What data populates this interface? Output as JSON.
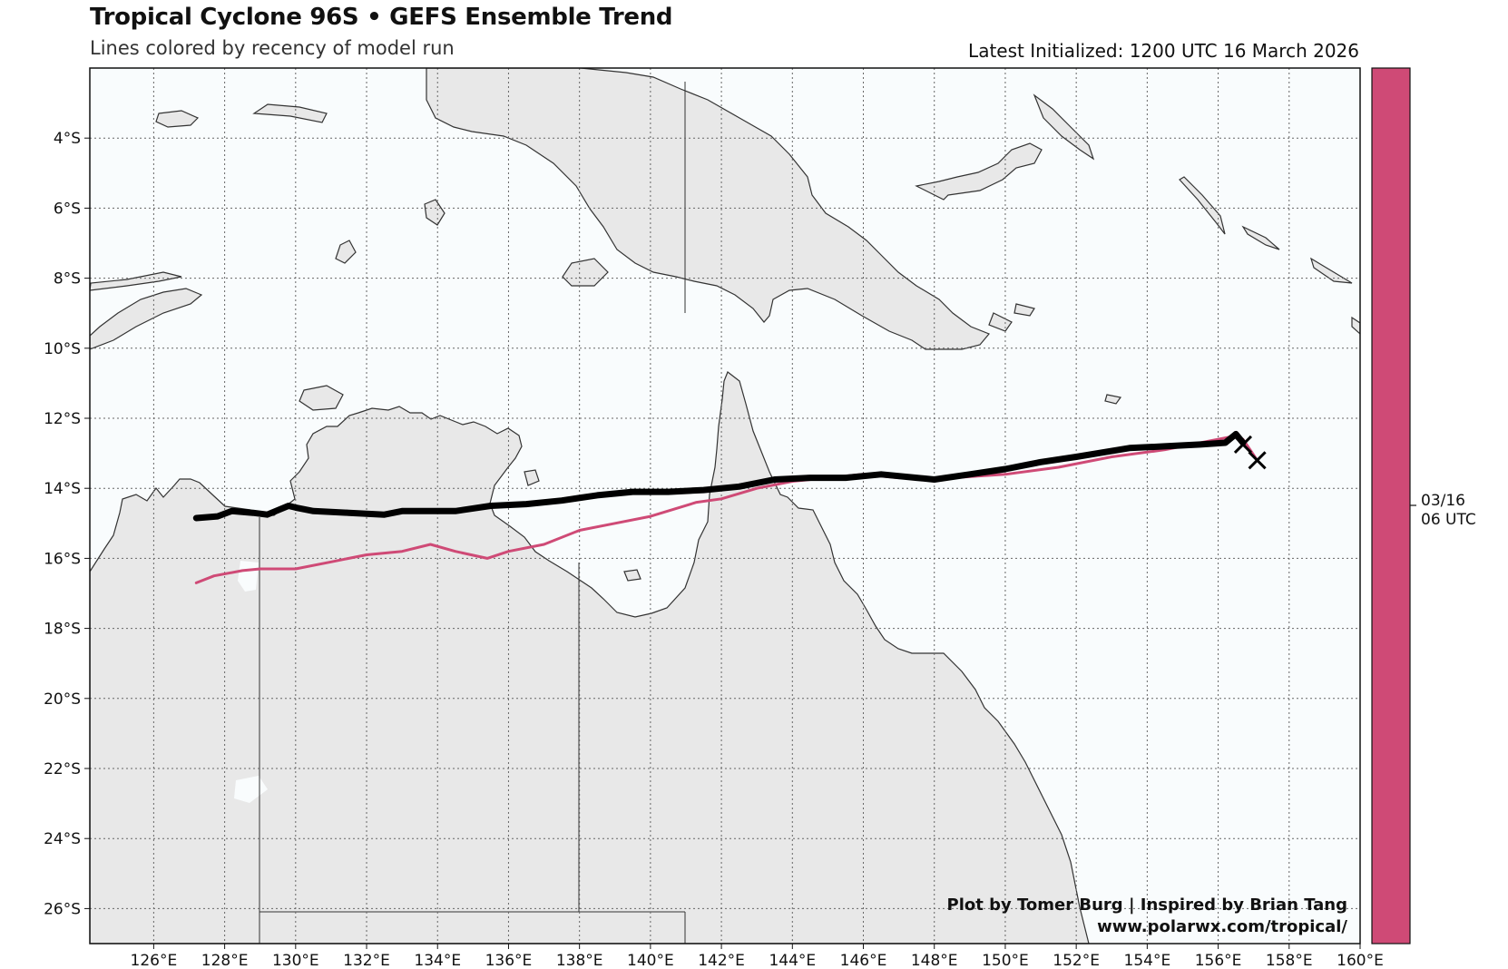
{
  "header": {
    "title": "Tropical Cyclone 96S • GEFS Ensemble Trend",
    "subtitle": "Lines colored by recency of model run",
    "latest_init": "Latest Initialized: 1200 UTC 16 March 2026"
  },
  "map": {
    "lon_range": [
      124.2,
      160
    ],
    "lat_range": [
      -27,
      -2
    ],
    "lon_ticks": [
      "126°E",
      "128°E",
      "130°E",
      "132°E",
      "134°E",
      "136°E",
      "138°E",
      "140°E",
      "142°E",
      "144°E",
      "146°E",
      "148°E",
      "150°E",
      "152°E",
      "154°E",
      "156°E",
      "158°E",
      "160°E"
    ],
    "lat_ticks": [
      "4°S",
      "6°S",
      "8°S",
      "10°S",
      "12°S",
      "14°S",
      "16°S",
      "18°S",
      "20°S",
      "22°S",
      "24°S",
      "26°S"
    ],
    "grid": true,
    "colors": {
      "land": "#e8e8e8",
      "ocean": "#f9fcfd",
      "coast": "#333333",
      "grid": "#666666"
    }
  },
  "colorbar": {
    "color": "#cf4a76",
    "label_date": "03/16",
    "label_time": "06 UTC"
  },
  "tracks": [
    {
      "run": "03/16 06 UTC",
      "color": "#cf4a76",
      "points": [
        [
          157.1,
          -13.2
        ],
        [
          156.9,
          -12.9
        ],
        [
          156.7,
          -12.6
        ],
        [
          156.5,
          -12.5
        ],
        [
          155.5,
          -12.7
        ],
        [
          154.5,
          -12.9
        ],
        [
          153,
          -13.1
        ],
        [
          151.5,
          -13.4
        ],
        [
          150,
          -13.6
        ],
        [
          148.5,
          -13.7
        ],
        [
          147,
          -13.7
        ],
        [
          146,
          -13.6
        ],
        [
          145,
          -13.7
        ],
        [
          144,
          -13.8
        ],
        [
          143,
          -14
        ],
        [
          142,
          -14.3
        ],
        [
          141.3,
          -14.4
        ],
        [
          140,
          -14.8
        ],
        [
          139,
          -15
        ],
        [
          138,
          -15.2
        ],
        [
          137,
          -15.6
        ],
        [
          136,
          -15.8
        ],
        [
          135.4,
          -16.0
        ],
        [
          134.5,
          -15.8
        ],
        [
          133.8,
          -15.6
        ],
        [
          133,
          -15.8
        ],
        [
          132,
          -15.9
        ],
        [
          131,
          -16.1
        ],
        [
          130,
          -16.3
        ],
        [
          129,
          -16.3
        ],
        [
          128.5,
          -16.35
        ],
        [
          127.7,
          -16.5
        ],
        [
          127.2,
          -16.7
        ]
      ]
    },
    {
      "run": "03/16 12 UTC",
      "color": "#000000",
      "points": [
        [
          156.7,
          -12.7
        ],
        [
          156.5,
          -12.45
        ],
        [
          156.2,
          -12.7
        ],
        [
          155.5,
          -12.75
        ],
        [
          154.5,
          -12.8
        ],
        [
          153.5,
          -12.85
        ],
        [
          152,
          -13.1
        ],
        [
          151,
          -13.25
        ],
        [
          150,
          -13.45
        ],
        [
          149,
          -13.6
        ],
        [
          148,
          -13.75
        ],
        [
          147.5,
          -13.7
        ],
        [
          146.5,
          -13.6
        ],
        [
          145.5,
          -13.7
        ],
        [
          144.5,
          -13.7
        ],
        [
          143.5,
          -13.75
        ],
        [
          142.5,
          -13.95
        ],
        [
          141.5,
          -14.05
        ],
        [
          140.5,
          -14.1
        ],
        [
          139.5,
          -14.1
        ],
        [
          138.5,
          -14.2
        ],
        [
          137.5,
          -14.35
        ],
        [
          136.5,
          -14.45
        ],
        [
          135.5,
          -14.5
        ],
        [
          134.5,
          -14.65
        ],
        [
          134,
          -14.65
        ],
        [
          133,
          -14.65
        ],
        [
          132.5,
          -14.75
        ],
        [
          131.5,
          -14.7
        ],
        [
          130.5,
          -14.65
        ],
        [
          130,
          -14.55
        ],
        [
          129.8,
          -14.5
        ],
        [
          129.2,
          -14.75
        ],
        [
          128.8,
          -14.7
        ],
        [
          128.2,
          -14.65
        ],
        [
          127.8,
          -14.8
        ],
        [
          127.2,
          -14.85
        ]
      ]
    }
  ],
  "markers": [
    {
      "lon": 156.7,
      "lat": -12.75,
      "symbol": "x"
    },
    {
      "lon": 157.1,
      "lat": -13.2,
      "symbol": "x"
    }
  ],
  "credits": {
    "line1": "Plot by Tomer Burg | Inspired by Brian Tang",
    "line2": "www.polarwx.com/tropical/"
  }
}
